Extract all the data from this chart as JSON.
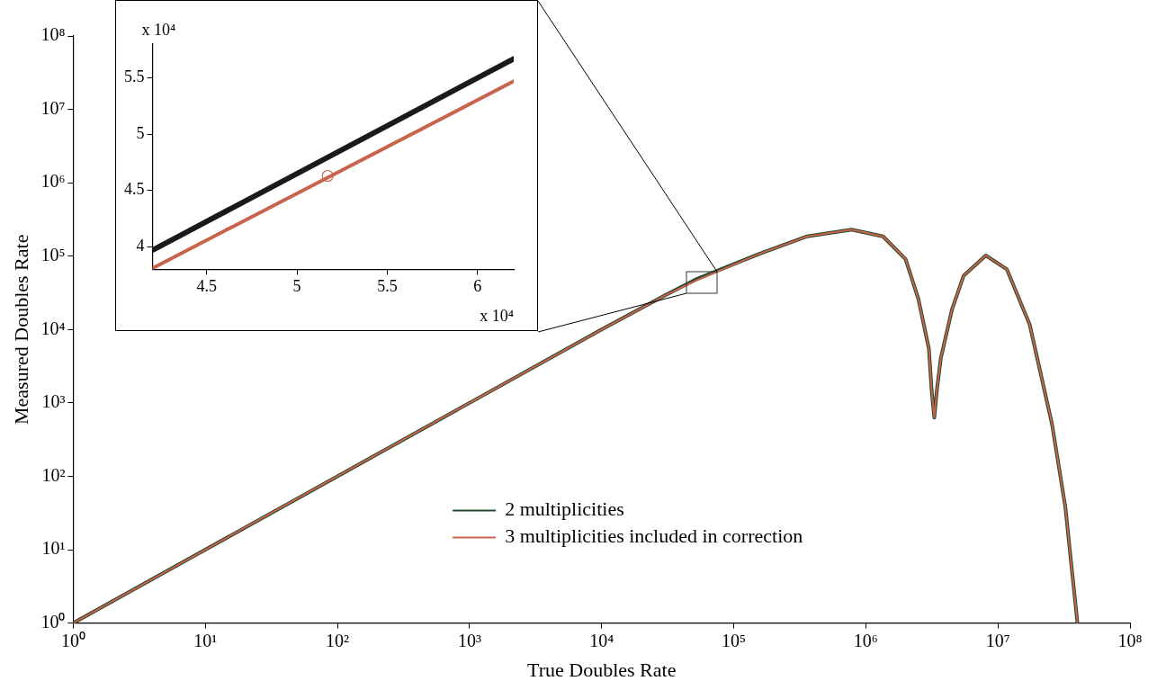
{
  "chart_data": [
    {
      "type": "line",
      "xlabel": "True Doubles Rate",
      "ylabel": "Measured Doubles Rate",
      "log": "xy",
      "grid": false,
      "legend": "bottom",
      "marker": "none",
      "line_style": "solid",
      "xlim": [
        1,
        100000000
      ],
      "ylim": [
        1,
        100000000
      ],
      "xticks": [
        {
          "value": 1,
          "label": "10⁰"
        },
        {
          "value": 10,
          "label": "10¹"
        },
        {
          "value": 100,
          "label": "10²"
        },
        {
          "value": 1000,
          "label": "10³"
        },
        {
          "value": 10000,
          "label": "10⁴"
        },
        {
          "value": 100000,
          "label": "10⁵"
        },
        {
          "value": 1000000,
          "label": "10⁶"
        },
        {
          "value": 10000000,
          "label": "10⁷"
        },
        {
          "value": 100000000,
          "label": "10⁸"
        }
      ],
      "yticks": [
        {
          "value": 1,
          "label": "10⁰"
        },
        {
          "value": 10,
          "label": "10¹"
        },
        {
          "value": 100,
          "label": "10²"
        },
        {
          "value": 1000,
          "label": "10³"
        },
        {
          "value": 10000,
          "label": "10⁴"
        },
        {
          "value": 100000,
          "label": "10⁵"
        },
        {
          "value": 1000000,
          "label": "10⁶"
        },
        {
          "value": 10000000,
          "label": "10⁷"
        },
        {
          "value": 100000000,
          "label": "10⁸"
        }
      ],
      "x": [
        1,
        10,
        100,
        1000,
        10000,
        30000,
        51600,
        155000,
        360000,
        780000,
        1350000,
        2000000,
        2500000,
        3000000,
        3150000,
        3300000,
        3450000,
        3700000,
        4500000,
        5500000,
        8100000,
        11700000,
        17400000,
        25700000,
        32400000,
        40000000
      ],
      "series": [
        {
          "name": "2 multiplicities",
          "color": "#24482c",
          "values": [
            1,
            10,
            100,
            1000,
            10000,
            29000,
            48000,
            107000,
            186000,
            230000,
            186000,
            91000,
            26000,
            5500,
            1500,
            630,
            1500,
            4100,
            19000,
            54000,
            102000,
            66000,
            11700,
            510,
            38,
            1
          ]
        },
        {
          "name": "3 multiplicities included in correction",
          "color": "#c8644c",
          "values": [
            1,
            10,
            100,
            1000,
            10000,
            29000,
            46300,
            107000,
            186000,
            230000,
            186000,
            91000,
            26000,
            5500,
            1500,
            630,
            1500,
            4100,
            19000,
            54000,
            102000,
            66000,
            11700,
            510,
            38,
            1
          ]
        }
      ]
    },
    {
      "type": "line",
      "grid": false,
      "legend": false,
      "marker": "none",
      "line_style": "solid",
      "xlim": [
        4.2,
        6.2
      ],
      "ylim": [
        3.8,
        5.8
      ],
      "xticks": [
        4.5,
        5,
        5.5,
        6
      ],
      "yticks": [
        4,
        4.5,
        5,
        5.5
      ],
      "annotations": [
        "x 10⁴",
        "x 10⁴"
      ],
      "series": [
        {
          "color": "#1a1a1a",
          "x": [
            4.2,
            6.2
          ],
          "values": [
            3.97,
            5.67
          ]
        },
        {
          "color": "#c8644c",
          "x": [
            4.2,
            6.2
          ],
          "values": [
            3.81,
            5.47
          ]
        },
        {
          "type": "scatter",
          "marker": "circle",
          "color": "#c8644c",
          "x": [
            5.17
          ],
          "values": [
            4.63
          ]
        }
      ]
    }
  ]
}
